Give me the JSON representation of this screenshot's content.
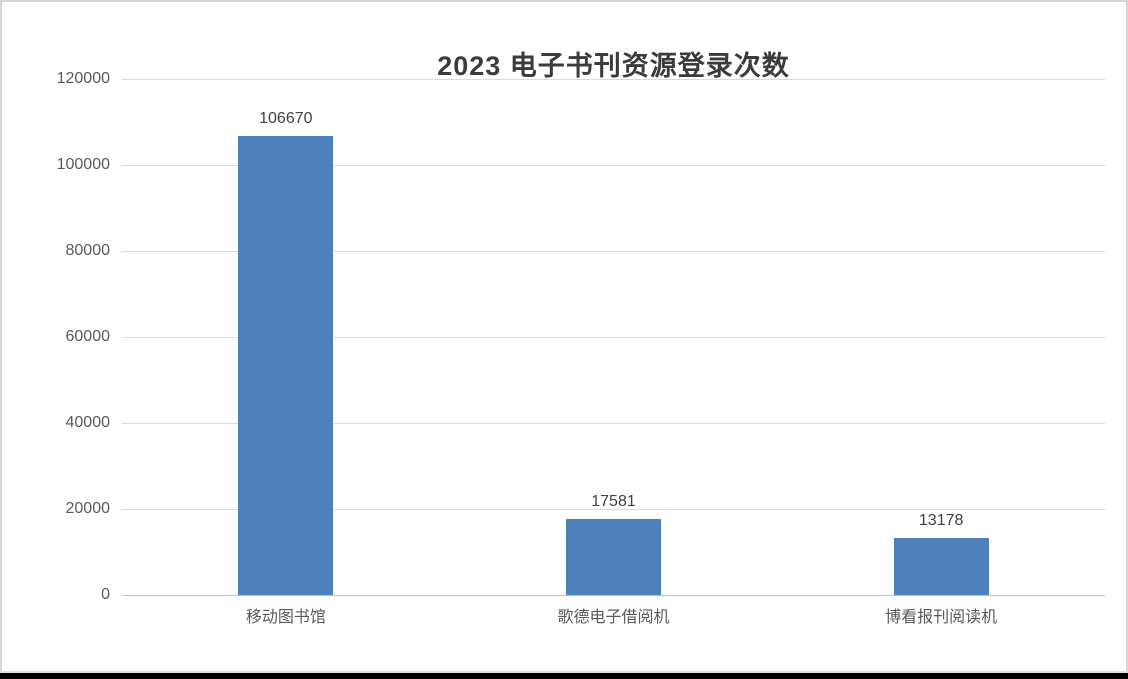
{
  "chart_data": {
    "type": "bar",
    "title": "2023 电子书刊资源登录次数",
    "categories": [
      "移动图书馆",
      "歌德电子借阅机",
      "博看报刊阅读机"
    ],
    "values": [
      106670,
      17581,
      13178
    ],
    "data_labels": [
      "106670",
      "17581",
      "13178"
    ],
    "xlabel": "",
    "ylabel": "",
    "ylim": [
      0,
      120000
    ],
    "ytick_step": 20000,
    "ytick_labels": [
      "0",
      "20000",
      "40000",
      "60000",
      "80000",
      "100000",
      "120000"
    ],
    "grid": "horizontal",
    "legend": "none",
    "bar_color": "#4e80bc",
    "gridline_color": "#d9d9d9",
    "axis_line_color": "#bfbfbf",
    "title_color": "#3b3b3b",
    "data_label_color": "#404040",
    "tick_label_color": "#595959"
  }
}
